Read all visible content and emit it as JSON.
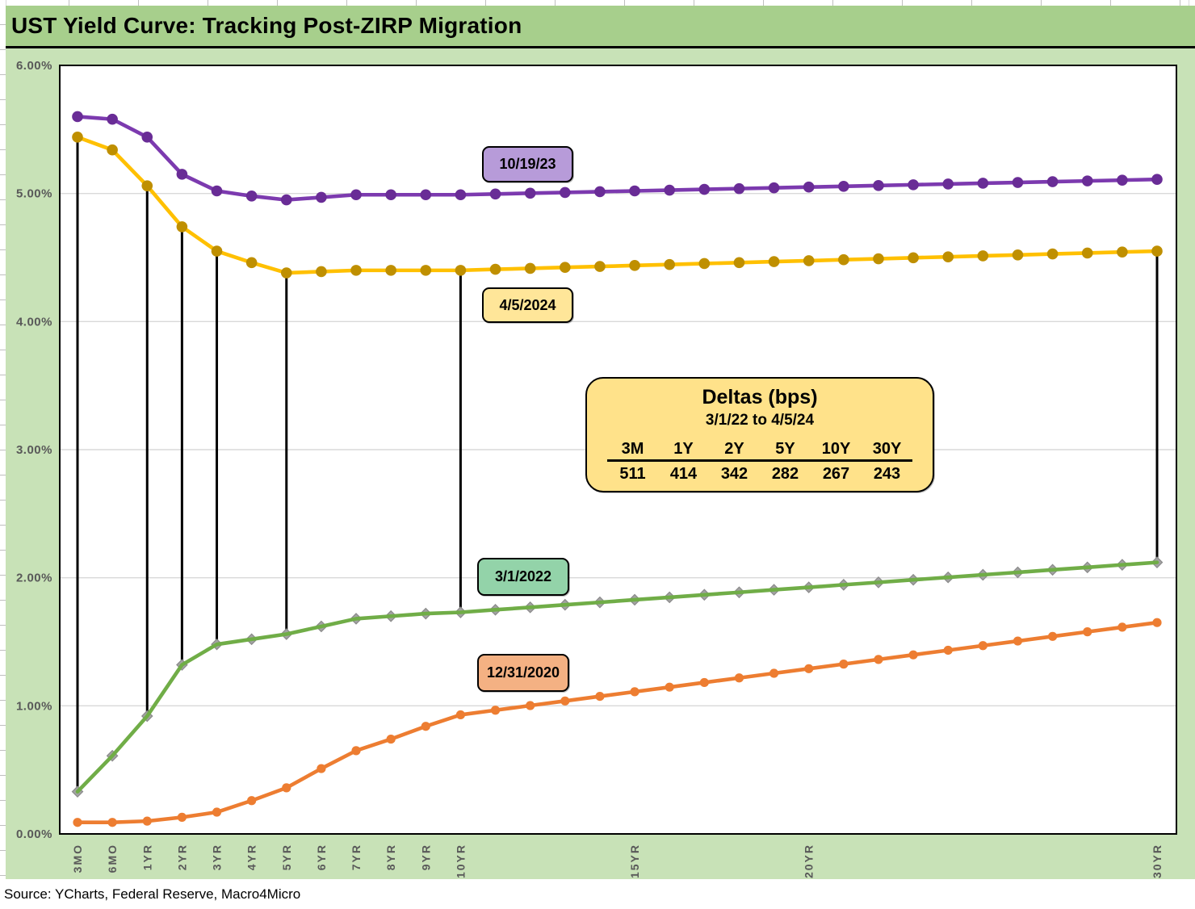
{
  "title": "UST Yield Curve: Tracking Post-ZIRP Migration",
  "source": "Source: YCharts, Federal Reserve, Macro4Micro",
  "colors": {
    "title_bar_bg": "#a7cf8c",
    "chart_bg": "#c8e2b7",
    "plot_bg": "#ffffff",
    "gridline": "#d9d9d9",
    "axis_text": "#595959",
    "delta_connector": "#000000"
  },
  "chart_data": {
    "type": "line",
    "title": "UST Yield Curve: Tracking Post-ZIRP Migration",
    "grid": "horizontal",
    "y_axis": {
      "min": 0,
      "max": 6,
      "tick_step": 1,
      "labels": [
        "0.00%",
        "1.00%",
        "2.00%",
        "3.00%",
        "4.00%",
        "5.00%",
        "6.00%"
      ]
    },
    "categories": [
      "3MO",
      "6MO",
      "1YR",
      "2YR",
      "3YR",
      "4YR",
      "5YR",
      "6YR",
      "7YR",
      "8YR",
      "9YR",
      "10YR",
      "11YR",
      "12YR",
      "13YR",
      "14YR",
      "15YR",
      "16YR",
      "17YR",
      "18YR",
      "19YR",
      "20YR",
      "21YR",
      "22YR",
      "23YR",
      "24YR",
      "25YR",
      "26YR",
      "27YR",
      "28YR",
      "29YR",
      "30YR"
    ],
    "x_tick_labels": [
      "3MO",
      "6MO",
      "1YR",
      "2YR",
      "3YR",
      "4YR",
      "5YR",
      "6YR",
      "7YR",
      "8YR",
      "9YR",
      "10YR",
      "15YR",
      "20YR",
      "30YR"
    ],
    "series": [
      {
        "name": "10/19/23",
        "line_color": "#7c3aaf",
        "marker_color": "#692c96",
        "marker": "circle",
        "label_box": {
          "text": "10/19/23",
          "fill": "#b79bd9"
        },
        "values": [
          5.6,
          5.58,
          5.44,
          5.15,
          5.02,
          4.98,
          4.95,
          4.97,
          4.99,
          4.99,
          4.99,
          4.99,
          4.996,
          5.002,
          5.008,
          5.014,
          5.02,
          5.026,
          5.032,
          5.038,
          5.044,
          5.05,
          5.056,
          5.062,
          5.068,
          5.074,
          5.08,
          5.086,
          5.092,
          5.098,
          5.104,
          5.11
        ]
      },
      {
        "name": "4/5/2024",
        "line_color": "#ffc000",
        "marker_color": "#bf8f00",
        "marker": "circle",
        "label_box": {
          "text": "4/5/2024",
          "fill": "#ffe699"
        },
        "values": [
          5.44,
          5.34,
          5.06,
          4.74,
          4.55,
          4.46,
          4.38,
          4.39,
          4.4,
          4.4,
          4.4,
          4.4,
          4.408,
          4.415,
          4.423,
          4.43,
          4.438,
          4.445,
          4.453,
          4.46,
          4.468,
          4.475,
          4.483,
          4.49,
          4.498,
          4.505,
          4.513,
          4.52,
          4.528,
          4.535,
          4.543,
          4.55
        ]
      },
      {
        "name": "3/1/2022",
        "line_color": "#70ad47",
        "marker_color": "#a3a3a3",
        "marker": "diamond",
        "label_box": {
          "text": "3/1/2022",
          "fill": "#93d3a9"
        },
        "values": [
          0.33,
          0.61,
          0.92,
          1.32,
          1.48,
          1.52,
          1.56,
          1.62,
          1.68,
          1.7,
          1.72,
          1.73,
          1.75,
          1.769,
          1.789,
          1.808,
          1.828,
          1.847,
          1.867,
          1.886,
          1.906,
          1.925,
          1.945,
          1.964,
          1.984,
          2.003,
          2.023,
          2.042,
          2.062,
          2.081,
          2.101,
          2.12
        ]
      },
      {
        "name": "12/31/2020",
        "line_color": "#ed7d31",
        "marker_color": "#ed7d31",
        "marker": "circle",
        "label_box": {
          "text": "12/31/2020",
          "fill": "#f4b183"
        },
        "values": [
          0.09,
          0.09,
          0.1,
          0.13,
          0.17,
          0.26,
          0.36,
          0.51,
          0.65,
          0.74,
          0.84,
          0.93,
          0.966,
          1.002,
          1.038,
          1.074,
          1.11,
          1.146,
          1.182,
          1.218,
          1.254,
          1.29,
          1.326,
          1.362,
          1.398,
          1.434,
          1.47,
          1.506,
          1.542,
          1.578,
          1.614,
          1.65
        ]
      }
    ],
    "delta_lines": {
      "categories": [
        "3MO",
        "1YR",
        "2YR",
        "3YR",
        "5YR",
        "10YR",
        "30YR"
      ],
      "from_series": "4/5/2024",
      "to_series": "3/1/2022"
    },
    "deltas_box": {
      "title": "Deltas (bps)",
      "subtitle": "3/1/22 to 4/5/24",
      "columns": [
        "3M",
        "1Y",
        "2Y",
        "5Y",
        "10Y",
        "30Y"
      ],
      "values": [
        "511",
        "414",
        "342",
        "282",
        "267",
        "243"
      ]
    }
  }
}
